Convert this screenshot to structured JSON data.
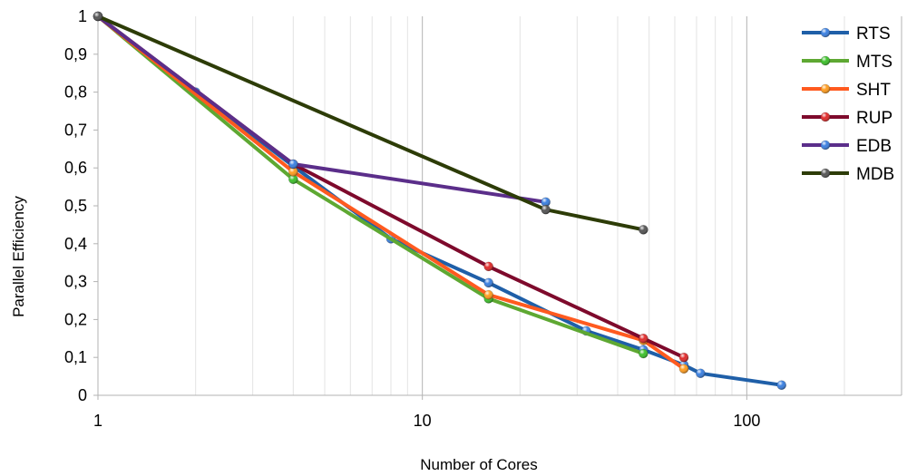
{
  "chart_data": {
    "type": "line",
    "title": "",
    "xlabel": "Number of Cores",
    "ylabel": "Parallel Efficiency",
    "xscale": "log",
    "xlim": [
      1,
      300
    ],
    "ylim": [
      0,
      1
    ],
    "xticks": [
      "1",
      "10",
      "100"
    ],
    "yticks": [
      "0",
      "0,1",
      "0,2",
      "0,3",
      "0,4",
      "0,5",
      "0,6",
      "0,7",
      "0,8",
      "0,9",
      "1"
    ],
    "grid": "vertical major and minor (log)",
    "legend_position": "top-right",
    "series": [
      {
        "name": "RTS",
        "color": "#1f5fa8",
        "marker": "#3a7fe0",
        "x": [
          1,
          2,
          4,
          8,
          16,
          32,
          48,
          64,
          72,
          128
        ],
        "y": [
          1.0,
          0.8,
          0.605,
          0.413,
          0.297,
          0.17,
          0.12,
          0.08,
          0.058,
          0.027
        ]
      },
      {
        "name": "MTS",
        "color": "#5ea832",
        "marker": "#3cc02a",
        "x": [
          1,
          4,
          16,
          48
        ],
        "y": [
          1.0,
          0.57,
          0.255,
          0.11
        ]
      },
      {
        "name": "SHT",
        "color": "#ff5a1f",
        "marker": "#ff9c1e",
        "x": [
          1,
          4,
          16,
          48,
          64
        ],
        "y": [
          1.0,
          0.59,
          0.265,
          0.145,
          0.07
        ]
      },
      {
        "name": "RUP",
        "color": "#7e0a2c",
        "marker": "#e02a2a",
        "x": [
          1,
          4,
          16,
          48,
          64
        ],
        "y": [
          1.0,
          0.61,
          0.34,
          0.15,
          0.1
        ]
      },
      {
        "name": "EDB",
        "color": "#5b2e8a",
        "marker": "#3a7fe0",
        "x": [
          1,
          4,
          24
        ],
        "y": [
          1.0,
          0.61,
          0.51
        ]
      },
      {
        "name": "MDB",
        "color": "#2d3c07",
        "marker": "#555555",
        "x": [
          1,
          24,
          48
        ],
        "y": [
          1.0,
          0.49,
          0.437
        ]
      }
    ]
  }
}
